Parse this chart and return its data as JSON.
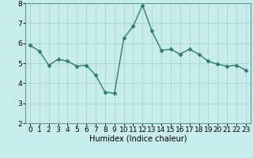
{
  "x": [
    0,
    1,
    2,
    3,
    4,
    5,
    6,
    7,
    8,
    9,
    10,
    11,
    12,
    13,
    14,
    15,
    16,
    17,
    18,
    19,
    20,
    21,
    22,
    23
  ],
  "y": [
    5.9,
    5.6,
    4.9,
    5.2,
    5.1,
    4.85,
    4.9,
    4.4,
    3.55,
    3.5,
    6.25,
    6.85,
    7.9,
    6.6,
    5.65,
    5.7,
    5.45,
    5.7,
    5.45,
    5.1,
    4.95,
    4.85,
    4.9,
    4.65
  ],
  "line_color": "#2e7d6e",
  "marker": "D",
  "marker_size": 2.5,
  "linewidth": 1.0,
  "bg_color": "#c8ecea",
  "grid_color": "#b0d4d0",
  "xlabel": "Humidex (Indice chaleur)",
  "ylim": [
    2,
    8
  ],
  "xlim": [
    -0.5,
    23.5
  ],
  "yticks": [
    2,
    3,
    4,
    5,
    6,
    7,
    8
  ],
  "xticks": [
    0,
    1,
    2,
    3,
    4,
    5,
    6,
    7,
    8,
    9,
    10,
    11,
    12,
    13,
    14,
    15,
    16,
    17,
    18,
    19,
    20,
    21,
    22,
    23
  ],
  "xlabel_fontsize": 7,
  "tick_fontsize": 6.5,
  "ylabel_fontsize": 7
}
